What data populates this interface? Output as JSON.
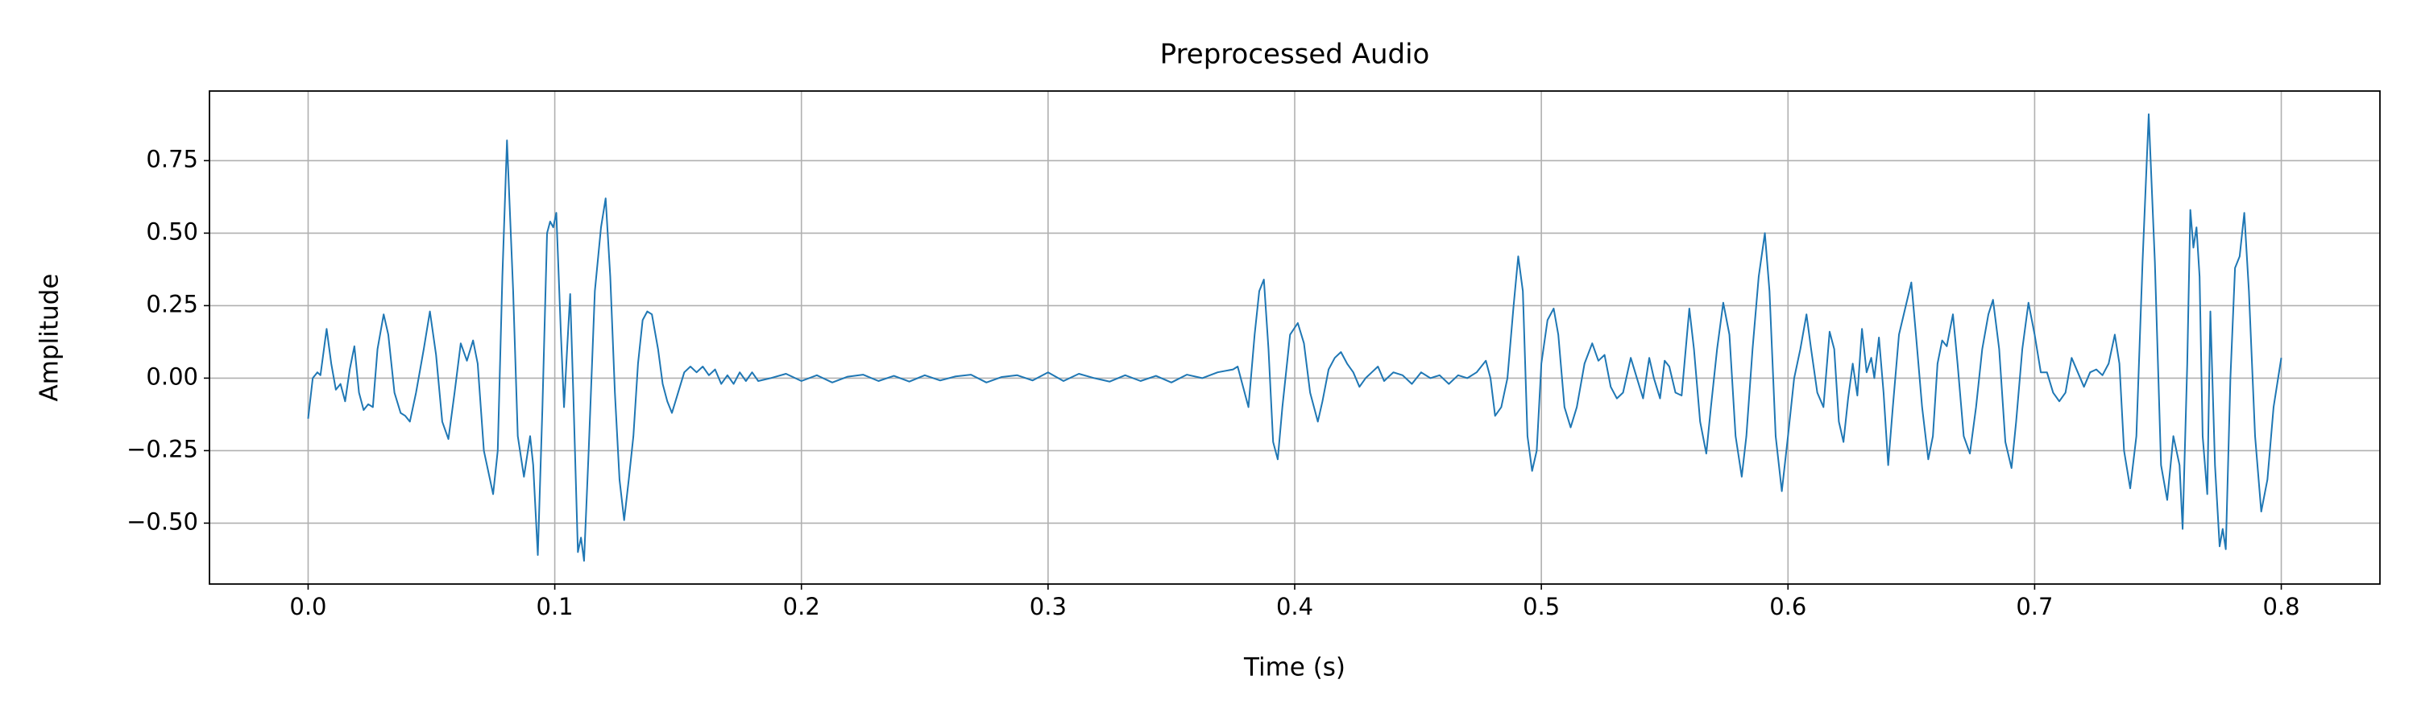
{
  "chart_data": {
    "type": "line",
    "title": "Preprocessed Audio",
    "xlabel": "Time (s)",
    "ylabel": "Amplitude",
    "color": "#1f77b4",
    "grid": true,
    "xlim": [
      -0.04,
      0.84
    ],
    "ylim": [
      -0.71,
      0.99
    ],
    "xticks": [
      {
        "value": 0,
        "label": "0.0"
      },
      0.1,
      0.2,
      0.3,
      0.4,
      0.5,
      0.6,
      0.7,
      0.8
    ],
    "yticks": [
      {
        "value": -0.5,
        "label": "−0.50"
      },
      {
        "value": -0.25,
        "label": "−0.25"
      },
      {
        "value": 0,
        "label": "0.00"
      },
      0.25,
      {
        "value": 0.5,
        "label": "0.50"
      },
      0.75
    ],
    "x": [
      0,
      0.001875,
      0.00375,
      0.005,
      0.0075,
      0.009375,
      0.01125,
      0.013125,
      0.015,
      0.016875,
      0.01875,
      0.020625,
      0.0225,
      0.024375,
      0.02625,
      0.028125,
      0.030625,
      0.0325,
      0.035,
      0.0375,
      0.039375,
      0.04125,
      0.04375,
      0.046875,
      0.049375,
      0.051875,
      0.054375,
      0.056875,
      0.059375,
      0.061875,
      0.064375,
      0.066875,
      0.06875,
      0.07125,
      0.075,
      0.076875,
      0.07875,
      0.080625,
      0.083125,
      0.085,
      0.0875,
      0.09,
      0.09125,
      0.093125,
      0.095,
      0.096875,
      0.098125,
      0.099375,
      0.100625,
      0.1025,
      0.10375,
      0.105,
      0.10625,
      0.1075,
      0.109375,
      0.110625,
      0.111875,
      0.11375,
      0.11625,
      0.11875,
      0.120625,
      0.1225,
      0.124375,
      0.12625,
      0.128125,
      0.13,
      0.131875,
      0.13375,
      0.135625,
      0.1375,
      0.139375,
      0.141875,
      0.14375,
      0.145625,
      0.1475,
      0.15,
      0.1525,
      0.155,
      0.1575,
      0.16,
      0.1625,
      0.165,
      0.1675,
      0.17,
      0.1725,
      0.175,
      0.1775,
      0.18,
      0.1825,
      0.1875,
      0.19375,
      0.2,
      0.20625,
      0.2125,
      0.21875,
      0.225,
      0.23125,
      0.2375,
      0.24375,
      0.25,
      0.25625,
      0.2625,
      0.26875,
      0.275,
      0.28125,
      0.2875,
      0.29375,
      0.3,
      0.30625,
      0.3125,
      0.31875,
      0.325,
      0.33125,
      0.3375,
      0.34375,
      0.35,
      0.35625,
      0.3625,
      0.36875,
      0.375,
      0.376875,
      0.37875,
      0.38125,
      0.38375,
      0.385625,
      0.3875,
      0.389375,
      0.39125,
      0.393125,
      0.395,
      0.398125,
      0.40125,
      0.40375,
      0.40625,
      0.409375,
      0.41125,
      0.41375,
      0.41625,
      0.41875,
      0.42125,
      0.42375,
      0.42625,
      0.42875,
      0.43125,
      0.43375,
      0.43625,
      0.44,
      0.44375,
      0.4475,
      0.45125,
      0.455,
      0.45875,
      0.4625,
      0.46625,
      0.47,
      0.47375,
      0.4775,
      0.479375,
      0.48125,
      0.48375,
      0.48625,
      0.48875,
      0.490625,
      0.4925,
      0.494375,
      0.49625,
      0.498125,
      0.5,
      0.5025,
      0.505,
      0.506875,
      0.509375,
      0.511875,
      0.514375,
      0.5175,
      0.520625,
      0.523125,
      0.525625,
      0.528125,
      0.530625,
      0.533125,
      0.53625,
      0.53875,
      0.54125,
      0.54375,
      0.545625,
      0.548125,
      0.55,
      0.551875,
      0.554375,
      0.556875,
      0.56,
      0.561875,
      0.564375,
      0.566875,
      0.56875,
      0.57125,
      0.57375,
      0.57625,
      0.57875,
      0.58125,
      0.583125,
      0.585625,
      0.588125,
      0.590625,
      0.5925,
      0.595,
      0.5975,
      0.6,
      0.6025,
      0.605,
      0.6075,
      0.609375,
      0.611875,
      0.614375,
      0.616875,
      0.61875,
      0.620625,
      0.6225,
      0.624375,
      0.62625,
      0.628125,
      0.63,
      0.631875,
      0.63375,
      0.635,
      0.636875,
      0.63875,
      0.640625,
      0.6425,
      0.645,
      0.6475,
      0.65,
      0.651875,
      0.654375,
      0.656875,
      0.65875,
      0.660625,
      0.6625,
      0.664375,
      0.666875,
      0.66875,
      0.67125,
      0.67375,
      0.67625,
      0.67875,
      0.68125,
      0.683125,
      0.685625,
      0.688125,
      0.690625,
      0.6925,
      0.695,
      0.6975,
      0.7,
      0.7025,
      0.705,
      0.7075,
      0.71,
      0.7125,
      0.715,
      0.7175,
      0.72,
      0.7225,
      0.725,
      0.7275,
      0.73,
      0.7325,
      0.734375,
      0.73625,
      0.73875,
      0.74125,
      0.74375,
      0.74625,
      0.74875,
      0.75125,
      0.75375,
      0.75625,
      0.75875,
      0.76,
      0.761875,
      0.763125,
      0.764375,
      0.765625,
      0.766875,
      0.768125,
      0.77,
      0.77125,
      0.773125,
      0.775,
      0.77625,
      0.7775,
      0.779375,
      0.78125,
      0.783125,
      0.785,
      0.786875,
      0.789375,
      0.791875,
      0.794375,
      0.796875,
      0.8
    ],
    "values": [
      -0.14,
      0.0,
      0.02,
      0.01,
      0.17,
      0.05,
      -0.04,
      -0.02,
      -0.08,
      0.03,
      0.11,
      -0.05,
      -0.11,
      -0.09,
      -0.1,
      0.1,
      0.22,
      0.15,
      -0.05,
      -0.12,
      -0.13,
      -0.15,
      -0.05,
      0.1,
      0.23,
      0.08,
      -0.15,
      -0.21,
      -0.05,
      0.12,
      0.06,
      0.13,
      0.05,
      -0.25,
      -0.4,
      -0.25,
      0.35,
      0.82,
      0.3,
      -0.2,
      -0.34,
      -0.2,
      -0.3,
      -0.61,
      -0.1,
      0.5,
      0.54,
      0.52,
      0.57,
      0.15,
      -0.1,
      0.1,
      0.29,
      -0.05,
      -0.6,
      -0.55,
      -0.63,
      -0.25,
      0.3,
      0.52,
      0.62,
      0.35,
      -0.05,
      -0.35,
      -0.49,
      -0.35,
      -0.2,
      0.05,
      0.2,
      0.23,
      0.22,
      0.1,
      -0.02,
      -0.08,
      -0.12,
      -0.05,
      0.02,
      0.04,
      0.02,
      0.04,
      0.01,
      0.03,
      -0.02,
      0.01,
      -0.02,
      0.02,
      -0.01,
      0.02,
      -0.01,
      0.0,
      0.015,
      -0.01,
      0.01,
      -0.015,
      0.005,
      0.012,
      -0.01,
      0.008,
      -0.012,
      0.01,
      -0.008,
      0.006,
      0.012,
      -0.015,
      0.004,
      0.01,
      -0.008,
      0.02,
      -0.01,
      0.015,
      0.0,
      -0.012,
      0.01,
      -0.01,
      0.008,
      -0.015,
      0.012,
      0.0,
      0.02,
      0.03,
      0.04,
      -0.02,
      -0.1,
      0.15,
      0.3,
      0.34,
      0.1,
      -0.22,
      -0.28,
      -0.1,
      0.15,
      0.19,
      0.12,
      -0.05,
      -0.15,
      -0.08,
      0.03,
      0.07,
      0.09,
      0.05,
      0.02,
      -0.03,
      0.0,
      0.02,
      0.04,
      -0.01,
      0.02,
      0.01,
      -0.02,
      0.02,
      0.0,
      0.01,
      -0.02,
      0.01,
      0.0,
      0.02,
      0.06,
      0.0,
      -0.13,
      -0.1,
      0.0,
      0.25,
      0.42,
      0.3,
      -0.2,
      -0.32,
      -0.25,
      0.05,
      0.2,
      0.24,
      0.15,
      -0.1,
      -0.17,
      -0.1,
      0.05,
      0.12,
      0.06,
      0.08,
      -0.03,
      -0.07,
      -0.05,
      0.07,
      0.0,
      -0.07,
      0.07,
      0.0,
      -0.07,
      0.06,
      0.04,
      -0.05,
      -0.06,
      0.24,
      0.1,
      -0.15,
      -0.26,
      -0.1,
      0.1,
      0.26,
      0.15,
      -0.2,
      -0.34,
      -0.2,
      0.1,
      0.35,
      0.5,
      0.3,
      -0.2,
      -0.39,
      -0.2,
      0.0,
      0.1,
      0.22,
      0.1,
      -0.05,
      -0.1,
      0.16,
      0.1,
      -0.15,
      -0.22,
      -0.07,
      0.05,
      -0.06,
      0.17,
      0.02,
      0.07,
      0.0,
      0.14,
      -0.05,
      -0.3,
      -0.1,
      0.15,
      0.24,
      0.33,
      0.15,
      -0.1,
      -0.28,
      -0.2,
      0.05,
      0.13,
      0.11,
      0.22,
      0.05,
      -0.2,
      -0.26,
      -0.1,
      0.1,
      0.22,
      0.27,
      0.1,
      -0.22,
      -0.31,
      -0.15,
      0.1,
      0.26,
      0.15,
      0.02,
      0.02,
      -0.05,
      -0.08,
      -0.05,
      0.07,
      0.02,
      -0.03,
      0.02,
      0.03,
      0.01,
      0.05,
      0.15,
      0.05,
      -0.25,
      -0.38,
      -0.2,
      0.4,
      0.91,
      0.4,
      -0.3,
      -0.42,
      -0.2,
      -0.3,
      -0.52,
      0.05,
      0.58,
      0.45,
      0.52,
      0.35,
      -0.2,
      -0.4,
      0.23,
      -0.3,
      -0.58,
      -0.52,
      -0.59,
      0.0,
      0.38,
      0.42,
      0.57,
      0.3,
      -0.2,
      -0.46,
      -0.35,
      -0.1,
      0.07
    ]
  }
}
